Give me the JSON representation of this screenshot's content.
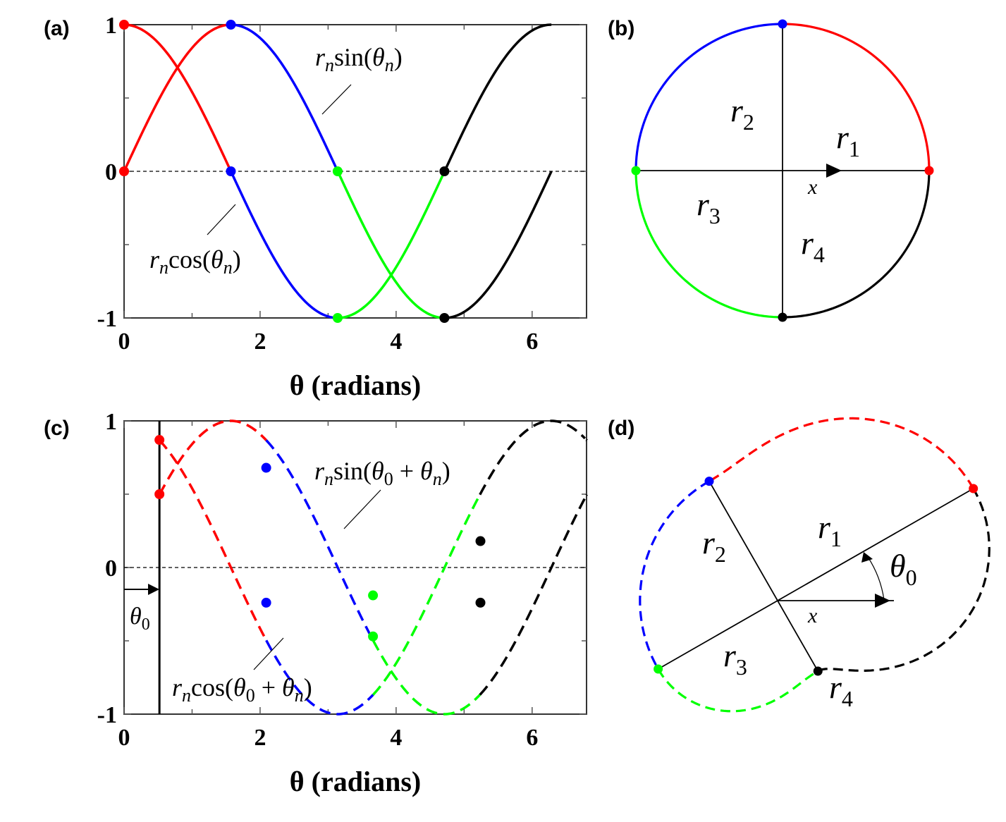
{
  "colors": {
    "red": "#ff0000",
    "blue": "#0000ff",
    "green": "#00ff00",
    "black": "#000000",
    "axis": "#333333",
    "grid": "#555555"
  },
  "panels": {
    "a": {
      "label": "(a)",
      "sin_label": "sin(",
      "cos_label": "cos("
    },
    "b": {
      "label": "(b)"
    },
    "c": {
      "label": "(c)",
      "sin_label": "sin(",
      "cos_label": "cos("
    },
    "d": {
      "label": "(d)"
    }
  },
  "chart_data": [
    {
      "panel": "a",
      "type": "line",
      "xlabel": "θ (radians)",
      "xlim": [
        0,
        6.8
      ],
      "ylim": [
        -1,
        1
      ],
      "xticks": [
        0,
        2,
        4,
        6
      ],
      "yticks": [
        -1,
        0,
        1
      ],
      "xtick_labels": [
        "0",
        "2",
        "4",
        "6"
      ],
      "ytick_labels": [
        "-1",
        "0",
        "1"
      ],
      "zero_line": "dashed",
      "annotations": [
        "r_n sin(θ_n)",
        "r_n cos(θ_n)"
      ],
      "theta0": 0,
      "line_style": "solid",
      "segments": [
        {
          "color": "red",
          "from": 0,
          "to": 1.5708
        },
        {
          "color": "blue",
          "from": 1.5708,
          "to": 3.1416
        },
        {
          "color": "green",
          "from": 3.1416,
          "to": 4.7124
        },
        {
          "color": "black",
          "from": 4.7124,
          "to": 6.2832
        }
      ],
      "points": [
        {
          "x": 0,
          "y": 1,
          "color": "red"
        },
        {
          "x": 0,
          "y": 0,
          "color": "red"
        },
        {
          "x": 1.57,
          "y": 1,
          "color": "blue"
        },
        {
          "x": 1.57,
          "y": 0,
          "color": "blue"
        },
        {
          "x": 3.14,
          "y": 0,
          "color": "green"
        },
        {
          "x": 3.14,
          "y": -1,
          "color": "green"
        },
        {
          "x": 4.71,
          "y": 0,
          "color": "black"
        },
        {
          "x": 4.71,
          "y": -1,
          "color": "black"
        }
      ]
    },
    {
      "panel": "c",
      "type": "line",
      "xlabel": "θ (radians)",
      "xlim": [
        0,
        6.8
      ],
      "ylim": [
        -1,
        1
      ],
      "xticks": [
        0,
        2,
        4,
        6
      ],
      "yticks": [
        -1,
        0,
        1
      ],
      "xtick_labels": [
        "0",
        "2",
        "4",
        "6"
      ],
      "ytick_labels": [
        "-1",
        "0",
        "1"
      ],
      "zero_line": "dashed",
      "annotations": [
        "r_n sin(θ_0 + θ_n)",
        "r_n cos(θ_0 + θ_n)",
        "θ_0"
      ],
      "theta0": 0.52,
      "line_style": "dashed",
      "segments": [
        {
          "color": "red",
          "from": 0,
          "to": 1.5708
        },
        {
          "color": "blue",
          "from": 1.5708,
          "to": 3.1416
        },
        {
          "color": "green",
          "from": 3.1416,
          "to": 4.7124
        },
        {
          "color": "black",
          "from": 4.7124,
          "to": 6.2832
        }
      ],
      "points": [
        {
          "x": 0.52,
          "y": 0.87,
          "color": "red"
        },
        {
          "x": 0.52,
          "y": 0.5,
          "color": "red"
        },
        {
          "x": 2.09,
          "y": 0.68,
          "color": "blue"
        },
        {
          "x": 2.09,
          "y": -0.24,
          "color": "blue"
        },
        {
          "x": 3.66,
          "y": -0.19,
          "color": "green"
        },
        {
          "x": 3.66,
          "y": -0.47,
          "color": "green"
        },
        {
          "x": 5.24,
          "y": 0.18,
          "color": "black"
        },
        {
          "x": 5.24,
          "y": -0.24,
          "color": "black"
        }
      ]
    }
  ],
  "diagrams": {
    "b": {
      "radius_labels": [
        "r1",
        "r2",
        "r3",
        "r4"
      ],
      "axis_label": "x",
      "radii": {
        "r1": 1.0,
        "r2": 1.0,
        "r3": 1.0,
        "r4": 1.0
      },
      "rotation": 0,
      "line_style": "solid"
    },
    "d": {
      "radius_labels": [
        "r1",
        "r2",
        "r3",
        "r4"
      ],
      "axis_label": "x",
      "angle_label": "θ0",
      "radii": {
        "r1": 1.0,
        "r2": 0.61,
        "r3": 0.61,
        "r4": 0.36
      },
      "rotation": 0.52,
      "line_style": "dashed"
    }
  }
}
